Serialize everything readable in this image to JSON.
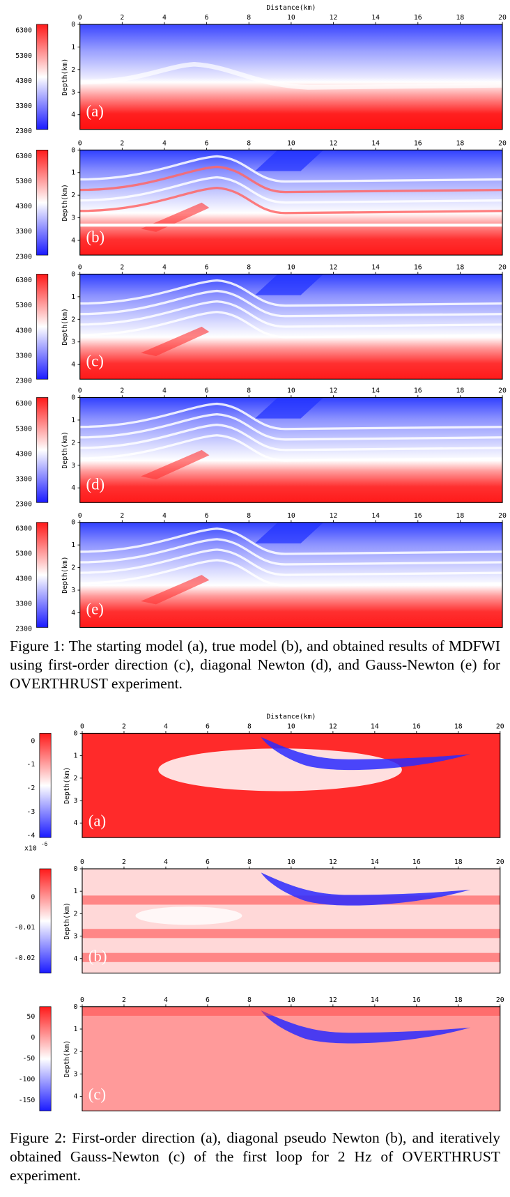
{
  "figure1": {
    "x_label": "Distance(km)",
    "y_label": "Depth(km)",
    "xticks": [
      0,
      2,
      4,
      6,
      8,
      10,
      12,
      14,
      16,
      18,
      20
    ],
    "yticks": [
      0,
      1,
      2,
      3,
      4
    ],
    "colorbar_ticks": [
      6300,
      5300,
      4300,
      3300,
      2300
    ],
    "panels": [
      {
        "label": "(a)"
      },
      {
        "label": "(b)"
      },
      {
        "label": "(c)"
      },
      {
        "label": "(d)"
      },
      {
        "label": "(e)"
      }
    ],
    "caption": "Figure 1: The starting model (a), true model (b), and obtained results of MDFWI using first-order direction (c), diagonal Newton (d), and Gauss-Newton (e) for OVERTHRUST experiment."
  },
  "figure2": {
    "x_label": "Distance(km)",
    "y_label": "Depth(km)",
    "xticks": [
      0,
      2,
      4,
      6,
      8,
      10,
      12,
      14,
      16,
      18,
      20
    ],
    "yticks": [
      0,
      1,
      2,
      3,
      4
    ],
    "panels": [
      {
        "label": "(a)",
        "colorbar_ticks": [
          0,
          -1,
          -2,
          -3,
          -4
        ],
        "colorbar_scale": {
          "base": "x10",
          "exponent": "-6"
        }
      },
      {
        "label": "(b)",
        "colorbar_ticks": [
          0,
          -0.01,
          -0.02
        ]
      },
      {
        "label": "(c)",
        "colorbar_ticks": [
          50,
          0,
          -50,
          -100,
          -150
        ]
      }
    ],
    "caption": "Figure 2: First-order direction (a), diagonal pseudo Newton (b), and iteratively obtained Gauss-Newton (c) of the first loop for 2 Hz of OVERTHRUST experiment."
  }
}
